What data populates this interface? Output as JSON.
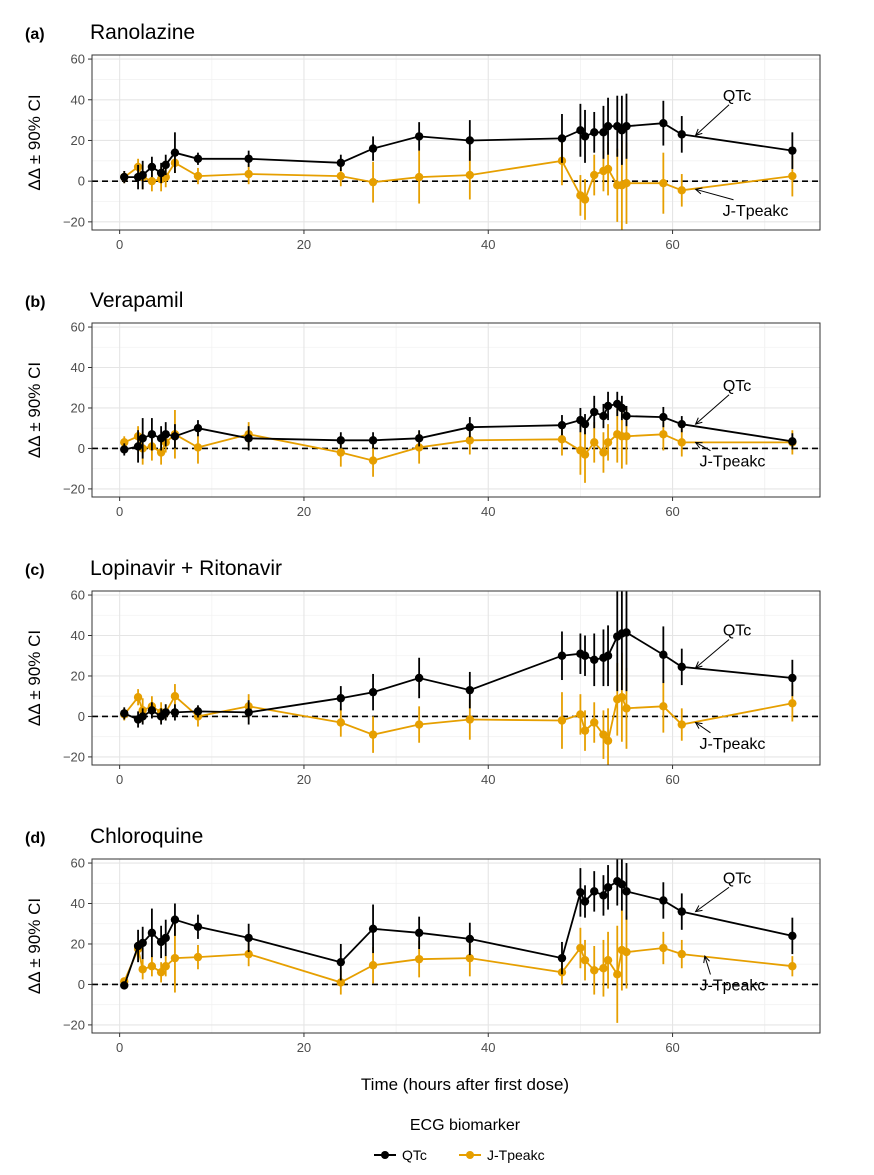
{
  "x_axis_title": "Time (hours after first dose)",
  "y_axis_title": "ΔΔ ± 90% CI",
  "legend": {
    "title": "ECG biomarker",
    "items": [
      {
        "label": "QTc",
        "color": "#000000"
      },
      {
        "label": "J-Tpeakc",
        "color": "#E69F00"
      }
    ]
  },
  "chart_data": [
    {
      "type": "line",
      "tag": "(a)",
      "title": "Ranolazine",
      "xlim": [
        -3,
        76
      ],
      "ylim": [
        -24,
        62
      ],
      "x_ticks": [
        0,
        20,
        40,
        60
      ],
      "y_ticks": [
        -20,
        0,
        20,
        40,
        60
      ],
      "reference_line_y": 0,
      "grid": true,
      "annotations": {
        "qtc": {
          "text": "QTc",
          "x": 67,
          "y": 39.5,
          "arrow_to": [
            62.5,
            22.5
          ]
        },
        "jt": {
          "text": "J-Tpeakc",
          "x": 69,
          "y": -17,
          "arrow_to": [
            62.5,
            -4
          ]
        }
      },
      "series": [
        {
          "name": "QTc",
          "color": "#000000",
          "x": [
            0.5,
            2,
            2.5,
            3.5,
            4.5,
            5,
            6,
            8.5,
            14,
            24,
            27.5,
            32.5,
            38,
            48,
            50,
            50.5,
            51.5,
            52.5,
            53,
            54,
            54.5,
            55,
            59,
            61,
            73
          ],
          "y": [
            2,
            2,
            3,
            7,
            4,
            8,
            14,
            11,
            11,
            9,
            16,
            22,
            20,
            21,
            25,
            22,
            24,
            24,
            27,
            27,
            25,
            27,
            28.5,
            23,
            15
          ],
          "err": [
            3,
            6,
            7,
            5,
            5,
            5,
            10,
            3,
            4,
            4,
            6,
            7,
            10,
            12,
            13,
            13,
            10,
            13,
            14,
            15,
            17,
            16,
            11,
            9,
            9
          ]
        },
        {
          "name": "J-Tpeakc",
          "color": "#E69F00",
          "x": [
            0.5,
            2,
            2.5,
            3.5,
            4.5,
            5,
            6,
            8.5,
            14,
            24,
            27.5,
            32.5,
            38,
            48,
            50,
            50.5,
            51.5,
            52.5,
            53,
            54,
            54.5,
            55,
            59,
            61,
            73
          ],
          "y": [
            2,
            7,
            2,
            0,
            1,
            2,
            9,
            2.5,
            3.5,
            2.5,
            -0.5,
            2,
            3,
            10,
            -7,
            -9,
            3,
            5,
            6,
            -2,
            -2,
            -1,
            -1,
            -4.5,
            2.5
          ],
          "err": [
            3,
            4,
            6,
            5,
            6,
            5,
            5,
            4,
            5,
            5,
            10,
            13,
            12,
            12,
            10,
            10,
            10,
            10,
            13,
            18,
            22,
            20,
            15,
            8,
            10
          ]
        }
      ]
    },
    {
      "type": "line",
      "tag": "(b)",
      "title": "Verapamil",
      "xlim": [
        -3,
        76
      ],
      "ylim": [
        -24,
        62
      ],
      "x_ticks": [
        0,
        20,
        40,
        60
      ],
      "y_ticks": [
        -20,
        0,
        20,
        40,
        60
      ],
      "reference_line_y": 0,
      "grid": true,
      "annotations": {
        "qtc": {
          "text": "QTc",
          "x": 67,
          "y": 28.5,
          "arrow_to": [
            62.5,
            12
          ]
        },
        "jt": {
          "text": "J-Tpeakc",
          "x": 66.5,
          "y": -9,
          "arrow_to": [
            62.5,
            3
          ]
        }
      },
      "series": [
        {
          "name": "QTc",
          "color": "#000000",
          "x": [
            0.5,
            2,
            2.5,
            3.5,
            4.5,
            5,
            6,
            8.5,
            14,
            24,
            27.5,
            32.5,
            38,
            48,
            50,
            50.5,
            51.5,
            52.5,
            53,
            54,
            54.5,
            55,
            59,
            61,
            73
          ],
          "y": [
            -0.5,
            1,
            5,
            7,
            5,
            7,
            6,
            10,
            5,
            4,
            4,
            5,
            10.5,
            11.5,
            14,
            12,
            18,
            16,
            21,
            22,
            20,
            16,
            15.5,
            12,
            3.5
          ],
          "err": [
            3,
            8,
            10,
            8,
            6,
            6,
            6,
            4,
            6,
            4,
            4,
            4,
            5,
            5,
            6,
            5,
            8,
            6,
            7,
            6,
            6,
            5,
            5,
            4,
            4
          ]
        },
        {
          "name": "J-Tpeakc",
          "color": "#E69F00",
          "x": [
            0.5,
            2,
            2.5,
            3.5,
            4.5,
            5,
            6,
            8.5,
            14,
            24,
            27.5,
            32.5,
            38,
            48,
            50,
            50.5,
            51.5,
            52.5,
            53,
            54,
            54.5,
            55,
            59,
            61,
            73
          ],
          "y": [
            3,
            6,
            0,
            1,
            -2,
            3,
            7,
            0.5,
            7,
            -2,
            -6,
            0.5,
            4,
            4.5,
            -1,
            -3,
            3,
            -2,
            3,
            7,
            6,
            6,
            7,
            3,
            3
          ],
          "err": [
            3,
            5,
            8,
            7,
            6,
            5,
            12,
            8,
            6,
            7,
            8,
            8,
            7,
            8,
            12,
            14,
            10,
            10,
            9,
            14,
            16,
            14,
            8,
            7,
            6
          ]
        }
      ]
    },
    {
      "type": "line",
      "tag": "(c)",
      "title": "Lopinavir + Ritonavir",
      "xlim": [
        -3,
        76
      ],
      "ylim": [
        -24,
        62
      ],
      "x_ticks": [
        0,
        20,
        40,
        60
      ],
      "y_ticks": [
        -20,
        0,
        20,
        40,
        60
      ],
      "reference_line_y": 0,
      "grid": true,
      "annotations": {
        "qtc": {
          "text": "QTc",
          "x": 67,
          "y": 40,
          "arrow_to": [
            62.5,
            24
          ]
        },
        "jt": {
          "text": "J-Tpeakc",
          "x": 66.5,
          "y": -16,
          "arrow_to": [
            62.5,
            -3
          ]
        }
      },
      "series": [
        {
          "name": "QTc",
          "color": "#000000",
          "x": [
            0.5,
            2,
            2.5,
            3.5,
            4.5,
            5,
            6,
            8.5,
            14,
            24,
            27.5,
            32.5,
            38,
            48,
            50,
            50.5,
            51.5,
            52.5,
            53,
            54,
            54.5,
            55,
            59,
            61,
            73
          ],
          "y": [
            1.5,
            -1.5,
            0,
            3,
            0,
            2,
            2,
            2.5,
            2,
            9,
            12,
            19,
            13,
            30,
            31,
            30,
            28,
            29,
            30,
            39.5,
            41,
            41.5,
            30.5,
            24.5,
            19
          ],
          "err": [
            3,
            4,
            4,
            4,
            4,
            4,
            4,
            3,
            6,
            6,
            9,
            10,
            9,
            12,
            10,
            10,
            13,
            14,
            15,
            27,
            28,
            29,
            14,
            9,
            9
          ]
        },
        {
          "name": "J-Tpeakc",
          "color": "#E69F00",
          "x": [
            0.5,
            2,
            2.5,
            3.5,
            4.5,
            5,
            6,
            8.5,
            14,
            24,
            27.5,
            32.5,
            38,
            48,
            50,
            50.5,
            51.5,
            52.5,
            53,
            54,
            54.5,
            55,
            59,
            61,
            73
          ],
          "y": [
            1,
            9.5,
            3,
            5,
            2,
            2,
            10,
            0,
            5,
            -3,
            -9,
            -4,
            -1.5,
            -2,
            1,
            -7,
            -3,
            -9,
            -12,
            8.5,
            9.5,
            4,
            5,
            -4,
            6.5
          ],
          "err": [
            3,
            4,
            6,
            5,
            5,
            4,
            6,
            5,
            6,
            7,
            9,
            9,
            10,
            14,
            10,
            10,
            10,
            12,
            16,
            18,
            22,
            20,
            13,
            8,
            9
          ]
        }
      ]
    },
    {
      "type": "line",
      "tag": "(d)",
      "title": "Chloroquine",
      "xlim": [
        -3,
        76
      ],
      "ylim": [
        -24,
        62
      ],
      "x_ticks": [
        0,
        20,
        40,
        60
      ],
      "y_ticks": [
        -20,
        0,
        20,
        40,
        60
      ],
      "reference_line_y": 0,
      "grid": true,
      "annotations": {
        "qtc": {
          "text": "QTc",
          "x": 67,
          "y": 50,
          "arrow_to": [
            62.5,
            36
          ]
        },
        "jt": {
          "text": "J-Tpeakc",
          "x": 66.5,
          "y": -3,
          "arrow_to": [
            63.5,
            14
          ]
        }
      },
      "series": [
        {
          "name": "QTc",
          "color": "#000000",
          "x": [
            0.5,
            2,
            2.5,
            3.5,
            4.5,
            5,
            6,
            8.5,
            14,
            24,
            27.5,
            32.5,
            38,
            48,
            50,
            50.5,
            51.5,
            52.5,
            53,
            54,
            54.5,
            55,
            59,
            61,
            73
          ],
          "y": [
            -0.5,
            19,
            20.5,
            25.5,
            21,
            23,
            32,
            28.5,
            23,
            11,
            27.5,
            25.5,
            22.5,
            13,
            45.5,
            41,
            46,
            44,
            48,
            51,
            49.5,
            46,
            41.5,
            36,
            24
          ],
          "err": [
            2,
            8,
            8,
            12,
            8,
            9,
            8,
            6,
            7,
            9,
            12,
            8,
            8,
            8,
            12,
            8,
            10,
            10,
            11,
            12,
            13,
            14,
            9,
            9,
            9
          ]
        },
        {
          "name": "J-Tpeakc",
          "color": "#E69F00",
          "x": [
            0.5,
            2,
            2.5,
            3.5,
            4.5,
            5,
            6,
            8.5,
            14,
            24,
            27.5,
            32.5,
            38,
            48,
            50,
            50.5,
            51.5,
            52.5,
            53,
            54,
            54.5,
            55,
            59,
            61,
            73
          ],
          "y": [
            1.5,
            17.5,
            7.5,
            9,
            6,
            9,
            13,
            13.5,
            15,
            1,
            9.5,
            12.5,
            13,
            6,
            18,
            12,
            7,
            8,
            12,
            5,
            17,
            16,
            18,
            15,
            9
          ],
          "err": [
            2,
            4,
            5,
            5,
            5,
            5,
            17,
            6,
            6,
            6,
            9,
            9,
            9,
            6,
            10,
            10,
            12,
            14,
            14,
            24,
            20,
            18,
            8,
            7,
            5
          ]
        }
      ]
    }
  ]
}
